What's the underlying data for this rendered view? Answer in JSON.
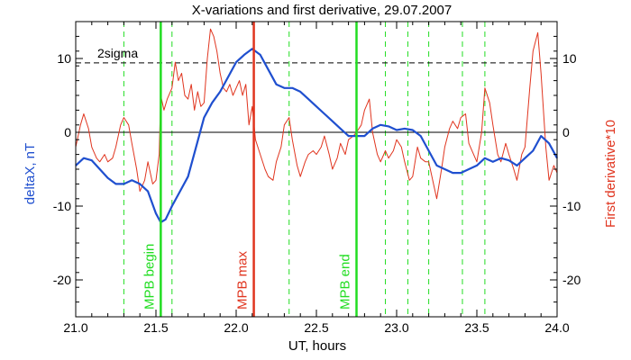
{
  "chart_data": {
    "type": "line",
    "title": "X-variations and first derivative, 29.07.2007",
    "xlabel": "UT, hours",
    "ylabel_left": "deltaX, nT",
    "ylabel_right": "First derivative*10",
    "xlim": [
      21.0,
      24.0
    ],
    "ylim": [
      -25,
      15
    ],
    "x_ticks": [
      {
        "value": 21.0,
        "label": "21.0"
      },
      {
        "value": 21.5,
        "label": "21.5"
      },
      {
        "value": 22.0,
        "label": "22.0"
      },
      {
        "value": 22.5,
        "label": "22.5"
      },
      {
        "value": 23.0,
        "label": "23.0"
      },
      {
        "value": 23.5,
        "label": "23.5"
      },
      {
        "value": 24.0,
        "label": "24.0"
      }
    ],
    "y_ticks": [
      {
        "value": 10,
        "label": "10"
      },
      {
        "value": 0,
        "label": "0"
      },
      {
        "value": -10,
        "label": "-10"
      },
      {
        "value": -20,
        "label": "-20"
      }
    ],
    "colors": {
      "deltaX": "#1f4fcf",
      "derivative": "#e0351f",
      "marker_green": "#22dd22",
      "marker_red": "#e0351f",
      "axis": "#000000"
    },
    "zero_line": 0,
    "sigma_line": {
      "value": 9.4,
      "label": "2sigma"
    },
    "markers": [
      {
        "x": 21.53,
        "label": "MPB begin",
        "color": "#22dd22"
      },
      {
        "x": 22.11,
        "label": "MPB max",
        "color": "#e0351f"
      },
      {
        "x": 22.75,
        "label": "MPB end",
        "color": "#22dd22"
      }
    ],
    "dashed_verticals": [
      21.3,
      21.6,
      22.33,
      22.93,
      23.07,
      23.2,
      23.41,
      23.55
    ],
    "series": [
      {
        "key": "deltaX",
        "x": [
          21.0,
          21.05,
          21.1,
          21.15,
          21.2,
          21.25,
          21.3,
          21.35,
          21.4,
          21.45,
          21.5,
          21.53,
          21.56,
          21.6,
          21.65,
          21.7,
          21.75,
          21.8,
          21.85,
          21.9,
          21.95,
          22.0,
          22.05,
          22.1,
          22.15,
          22.2,
          22.25,
          22.3,
          22.35,
          22.4,
          22.45,
          22.5,
          22.55,
          22.6,
          22.65,
          22.7,
          22.75,
          22.8,
          22.85,
          22.9,
          22.95,
          23.0,
          23.05,
          23.1,
          23.15,
          23.2,
          23.25,
          23.3,
          23.35,
          23.4,
          23.45,
          23.5,
          23.55,
          23.6,
          23.65,
          23.7,
          23.75,
          23.8,
          23.85,
          23.9,
          23.95,
          24.0
        ],
        "y": [
          -4.5,
          -3.5,
          -3.8,
          -5.0,
          -6.2,
          -7.0,
          -7.0,
          -6.5,
          -7.0,
          -8.0,
          -11.0,
          -12.2,
          -11.8,
          -10.0,
          -8.0,
          -6.0,
          -2.0,
          2.0,
          4.0,
          5.5,
          7.5,
          9.5,
          10.5,
          11.3,
          10.5,
          8.5,
          6.5,
          6.0,
          6.0,
          5.5,
          4.5,
          3.5,
          2.5,
          1.5,
          0.5,
          -0.5,
          -0.5,
          -0.5,
          0.5,
          1.0,
          0.8,
          0.3,
          0.5,
          0.3,
          -0.5,
          -2.5,
          -4.5,
          -5.0,
          -5.5,
          -5.5,
          -5.0,
          -4.5,
          -3.5,
          -4.0,
          -3.5,
          -3.8,
          -4.5,
          -3.5,
          -2.5,
          -0.5,
          -1.5,
          -3.5
        ]
      },
      {
        "key": "derivative",
        "x": [
          21.0,
          21.03,
          21.05,
          21.08,
          21.1,
          21.13,
          21.15,
          21.18,
          21.2,
          21.23,
          21.25,
          21.28,
          21.3,
          21.33,
          21.35,
          21.38,
          21.4,
          21.43,
          21.45,
          21.48,
          21.5,
          21.52,
          21.53,
          21.55,
          21.57,
          21.6,
          21.62,
          21.64,
          21.66,
          21.68,
          21.7,
          21.72,
          21.74,
          21.76,
          21.78,
          21.8,
          21.82,
          21.84,
          21.86,
          21.88,
          21.9,
          21.92,
          21.94,
          21.96,
          21.98,
          22.0,
          22.02,
          22.04,
          22.06,
          22.08,
          22.1,
          22.12,
          22.15,
          22.18,
          22.2,
          22.23,
          22.25,
          22.28,
          22.3,
          22.33,
          22.35,
          22.38,
          22.4,
          22.43,
          22.45,
          22.48,
          22.5,
          22.53,
          22.55,
          22.58,
          22.6,
          22.63,
          22.65,
          22.68,
          22.7,
          22.73,
          22.75,
          22.78,
          22.8,
          22.83,
          22.85,
          22.88,
          22.9,
          22.93,
          22.95,
          22.98,
          23.0,
          23.03,
          23.05,
          23.08,
          23.1,
          23.13,
          23.15,
          23.18,
          23.2,
          23.23,
          23.25,
          23.28,
          23.3,
          23.33,
          23.35,
          23.38,
          23.4,
          23.43,
          23.45,
          23.48,
          23.5,
          23.53,
          23.55,
          23.58,
          23.6,
          23.63,
          23.65,
          23.68,
          23.7,
          23.73,
          23.75,
          23.78,
          23.8,
          23.83,
          23.85,
          23.88,
          23.9,
          23.93,
          23.95,
          23.98,
          24.0
        ],
        "y": [
          -2.0,
          1.0,
          2.5,
          0.5,
          -2.0,
          -3.5,
          -4.0,
          -3.0,
          -4.0,
          -3.5,
          -2.0,
          1.0,
          2.0,
          1.0,
          -1.5,
          -5.0,
          -8.0,
          -6.5,
          -4.0,
          -7.0,
          -6.5,
          -3.0,
          5.0,
          3.0,
          4.5,
          6.0,
          9.5,
          7.0,
          8.0,
          5.0,
          4.5,
          6.5,
          3.0,
          5.5,
          3.5,
          4.0,
          10.0,
          14.0,
          13.0,
          11.0,
          8.0,
          6.0,
          5.5,
          6.5,
          5.0,
          6.0,
          7.0,
          5.0,
          6.5,
          1.0,
          3.5,
          -1.0,
          -3.0,
          -5.0,
          -6.0,
          -6.5,
          -4.0,
          -2.0,
          1.0,
          2.0,
          -1.0,
          -4.5,
          -6.0,
          -4.0,
          -3.0,
          -2.5,
          -3.0,
          -2.0,
          -0.5,
          -3.0,
          -5.0,
          -3.5,
          -1.5,
          -3.0,
          -1.0,
          -0.5,
          0.0,
          1.0,
          3.0,
          4.5,
          0.0,
          -3.0,
          -4.0,
          -2.5,
          -3.5,
          -2.5,
          -1.0,
          -2.0,
          -4.0,
          -6.5,
          -6.0,
          -2.0,
          -3.5,
          -4.0,
          -4.0,
          -7.0,
          -9.0,
          -5.0,
          -2.0,
          0.5,
          1.5,
          0.5,
          2.0,
          2.5,
          -1.5,
          -3.0,
          -4.0,
          0.0,
          6.0,
          4.0,
          1.0,
          -3.0,
          -4.0,
          -1.5,
          -3.0,
          -5.0,
          -6.5,
          -3.0,
          -2.0,
          6.0,
          11.0,
          13.5,
          8.0,
          -2.0,
          -6.5,
          -4.5,
          -5.5
        ]
      }
    ]
  }
}
